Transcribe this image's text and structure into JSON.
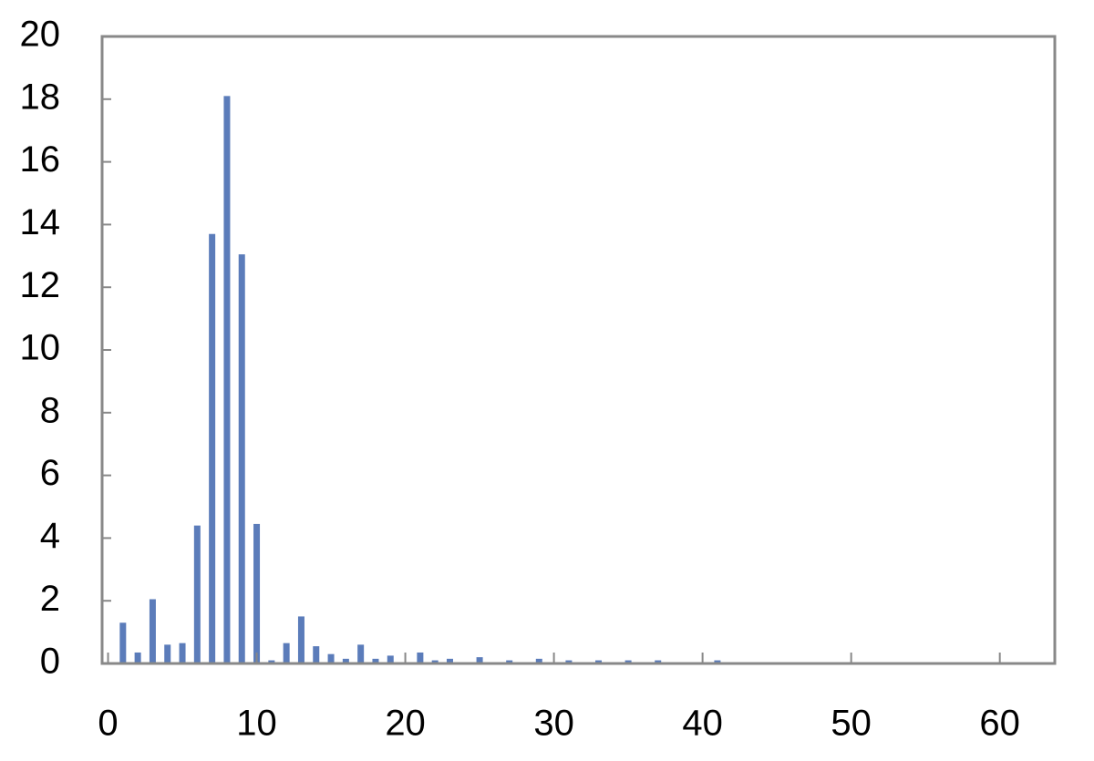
{
  "chart_data": {
    "type": "bar",
    "x": [
      1,
      2,
      3,
      4,
      5,
      6,
      7,
      8,
      9,
      10,
      11,
      12,
      13,
      14,
      15,
      16,
      17,
      18,
      19,
      21,
      22,
      23,
      25,
      27,
      29,
      31,
      33,
      35,
      37,
      41
    ],
    "values": [
      1.3,
      0.35,
      2.05,
      0.6,
      0.65,
      4.4,
      13.7,
      18.1,
      13.05,
      4.45,
      0.1,
      0.65,
      1.5,
      0.55,
      0.3,
      0.15,
      0.6,
      0.15,
      0.25,
      0.35,
      0.1,
      0.15,
      0.2,
      0.1,
      0.15,
      0.1,
      0.1,
      0.1,
      0.1,
      0.1
    ],
    "color": "#5b7cba",
    "xlim": [
      -0.4,
      63.7
    ],
    "xticks": [
      0,
      10,
      20,
      30,
      40,
      50,
      60
    ],
    "ylim": [
      0,
      20
    ],
    "yticks": [
      0,
      2,
      4,
      6,
      8,
      10,
      12,
      14,
      16,
      18,
      20
    ],
    "grid": false
  }
}
